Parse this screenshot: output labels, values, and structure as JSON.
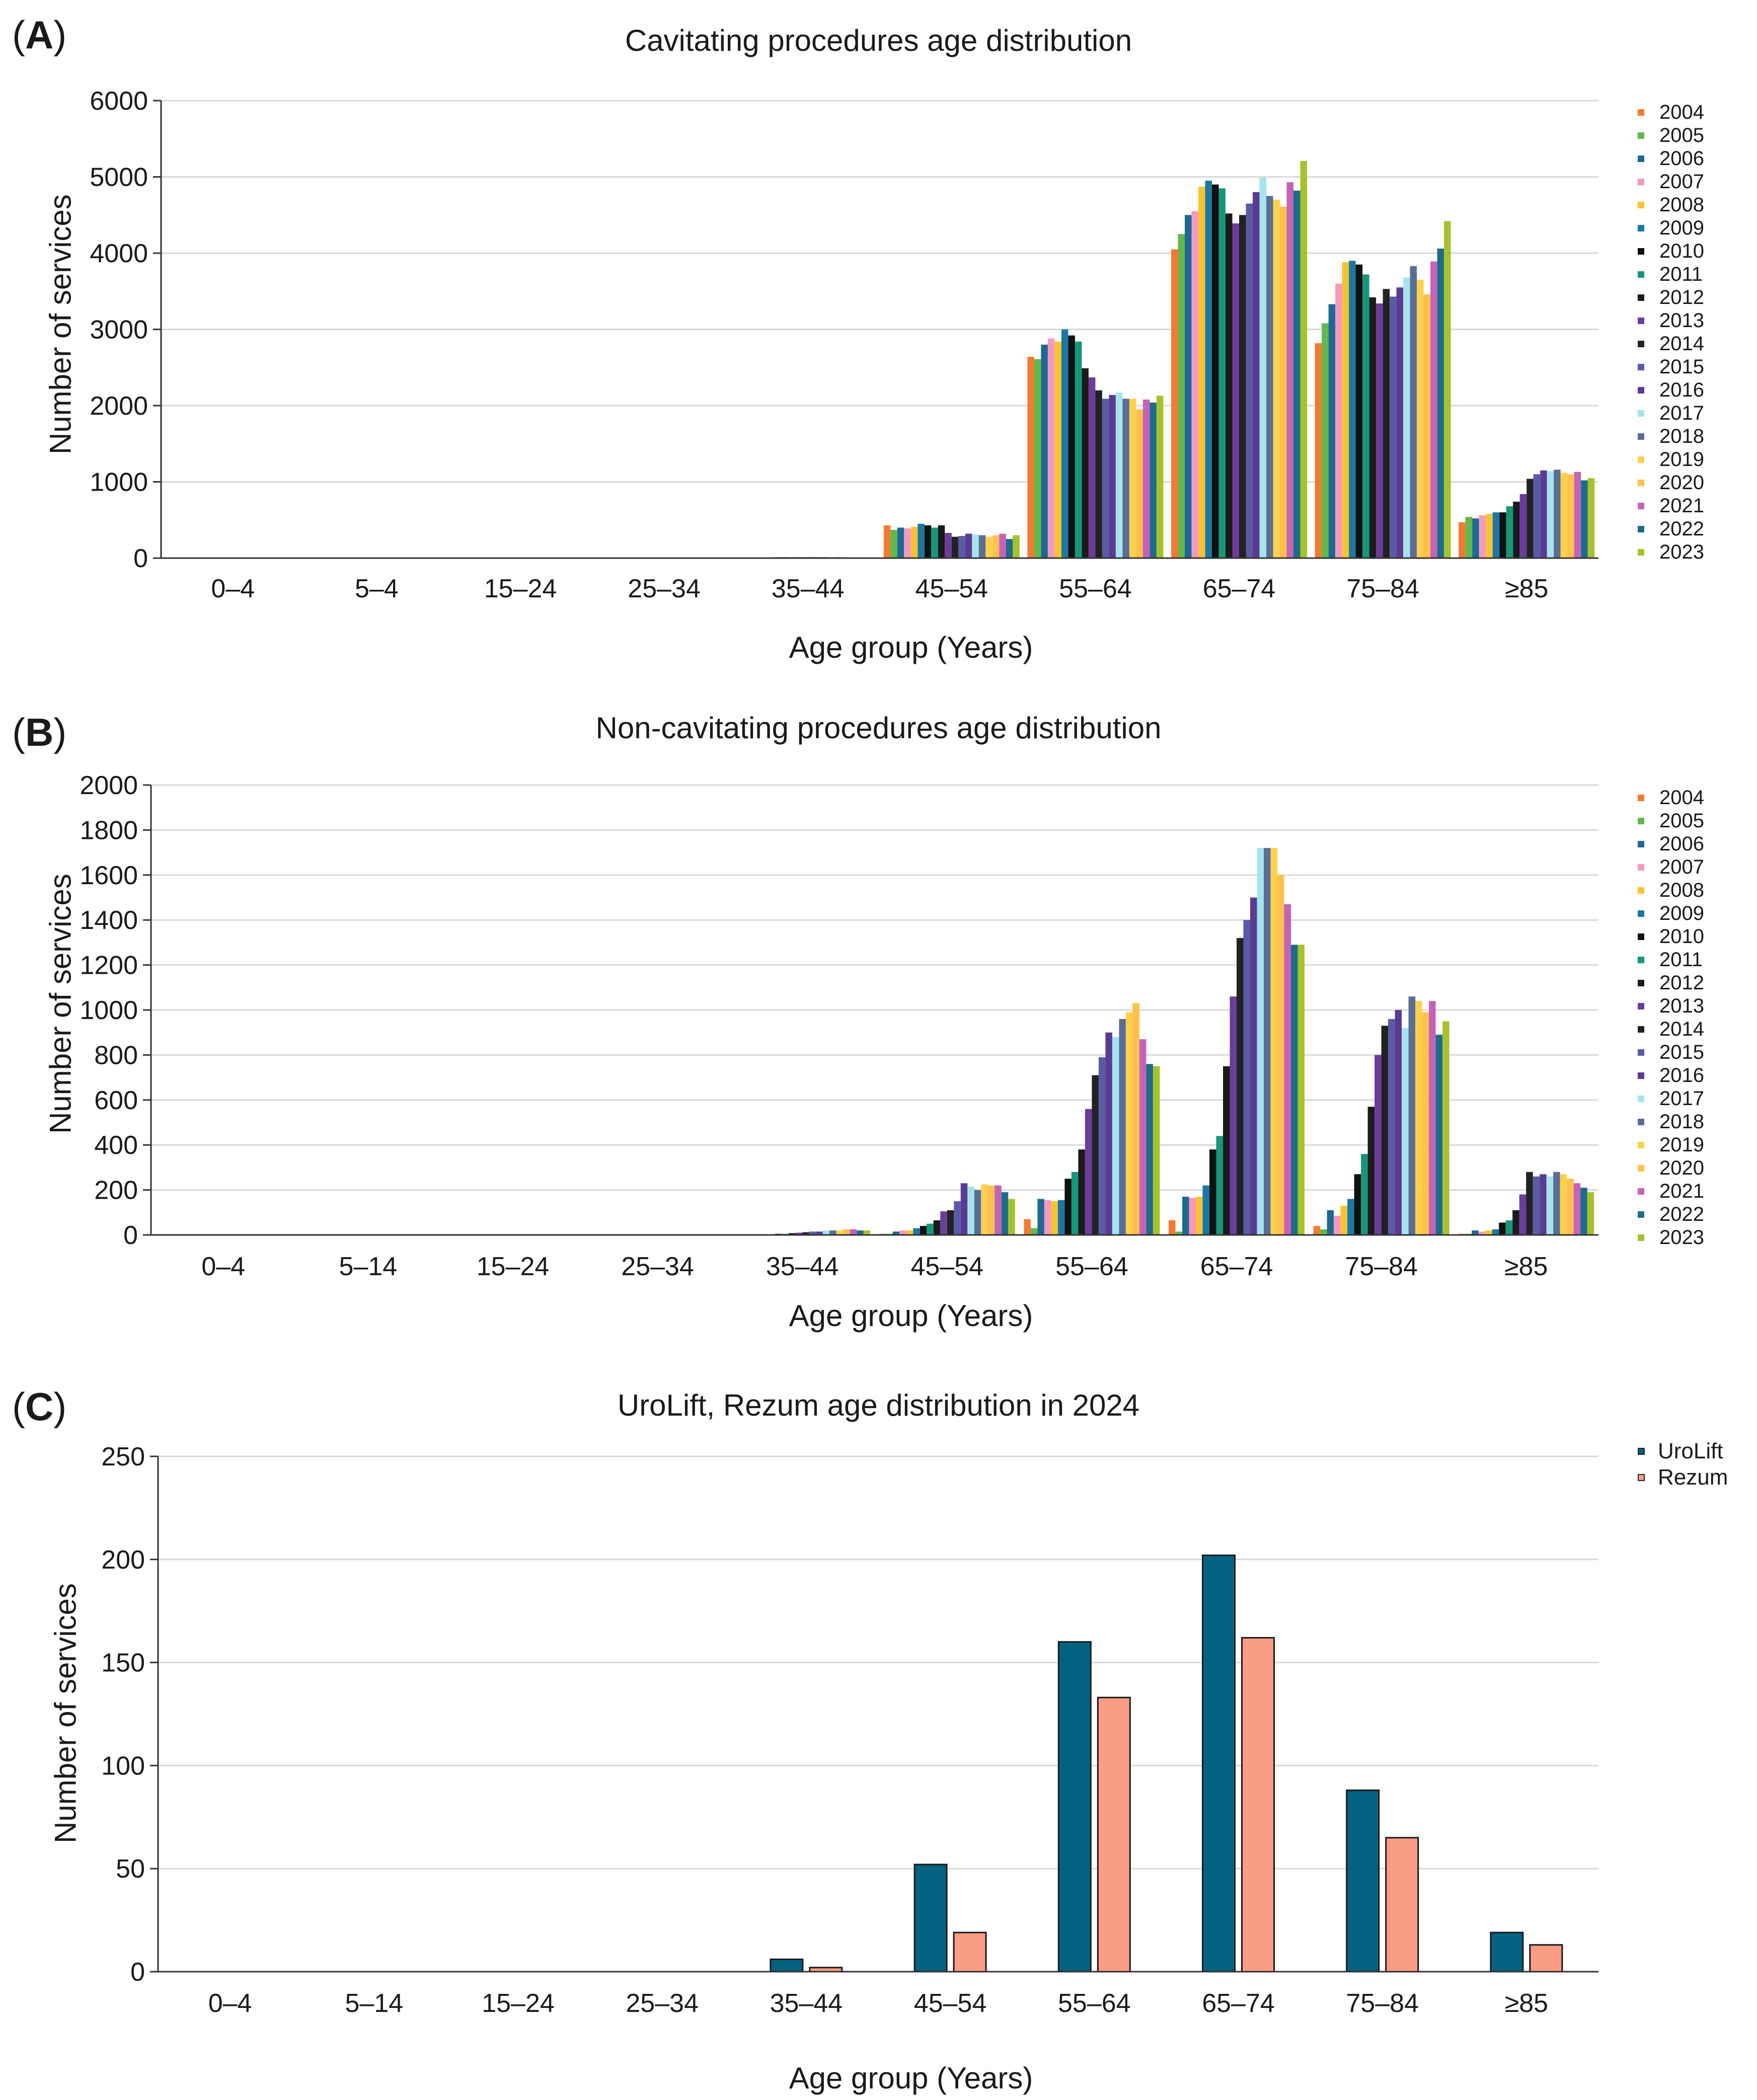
{
  "colors": {
    "years": [
      "#f37a32",
      "#62b84a",
      "#1c6a93",
      "#f49ac1",
      "#f8c332",
      "#1b78a2",
      "#111111",
      "#17977a",
      "#1a1a1a",
      "#6a3d9a",
      "#222222",
      "#5a5aa6",
      "#5b3a94",
      "#a5e4ec",
      "#5a6e96",
      "#ffd04d",
      "#fcc14e",
      "#c662b8",
      "#1c6d8a",
      "#a6c22c"
    ],
    "urolift": "#036280",
    "rezum": "#fa9d86",
    "grid": "#d9d9d9"
  },
  "chart_data": [
    {
      "id": "A",
      "panel_label": "A",
      "type": "bar",
      "title": "Cavitating procedures age distribution",
      "xlabel": "Age group (Years)",
      "ylabel": "Number of services",
      "ylim": [
        0,
        6000
      ],
      "yticks": [
        0,
        1000,
        2000,
        3000,
        4000,
        5000,
        6000
      ],
      "grid": true,
      "legend_position": "right",
      "categories": [
        "0–4",
        "5–4",
        "15–24",
        "25–34",
        "35–44",
        "45–54",
        "55–64",
        "65–74",
        "75–84",
        "≥85"
      ],
      "series": [
        {
          "name": "2004",
          "values": [
            0,
            0,
            0,
            3,
            10,
            430,
            2640,
            4050,
            2820,
            470
          ]
        },
        {
          "name": "2005",
          "values": [
            0,
            0,
            0,
            3,
            10,
            370,
            2610,
            4250,
            3080,
            540
          ]
        },
        {
          "name": "2006",
          "values": [
            0,
            0,
            0,
            3,
            10,
            400,
            2800,
            4500,
            3330,
            520
          ]
        },
        {
          "name": "2007",
          "values": [
            0,
            0,
            0,
            3,
            10,
            390,
            2880,
            4550,
            3600,
            560
          ]
        },
        {
          "name": "2008",
          "values": [
            0,
            0,
            0,
            3,
            10,
            410,
            2840,
            4870,
            3880,
            580
          ]
        },
        {
          "name": "2009",
          "values": [
            0,
            0,
            0,
            3,
            12,
            450,
            3000,
            4950,
            3900,
            600
          ]
        },
        {
          "name": "2010",
          "values": [
            0,
            0,
            0,
            3,
            12,
            430,
            2920,
            4900,
            3850,
            600
          ]
        },
        {
          "name": "2011",
          "values": [
            0,
            0,
            0,
            3,
            12,
            400,
            2840,
            4850,
            3720,
            680
          ]
        },
        {
          "name": "2012",
          "values": [
            0,
            0,
            0,
            3,
            12,
            430,
            2490,
            4520,
            3420,
            740
          ]
        },
        {
          "name": "2013",
          "values": [
            0,
            0,
            0,
            3,
            12,
            330,
            2370,
            4390,
            3340,
            840
          ]
        },
        {
          "name": "2014",
          "values": [
            0,
            0,
            0,
            3,
            12,
            280,
            2200,
            4500,
            3530,
            1040
          ]
        },
        {
          "name": "2015",
          "values": [
            0,
            0,
            0,
            3,
            12,
            290,
            2090,
            4650,
            3430,
            1100
          ]
        },
        {
          "name": "2016",
          "values": [
            0,
            0,
            0,
            3,
            12,
            320,
            2140,
            4800,
            3550,
            1150
          ]
        },
        {
          "name": "2017",
          "values": [
            0,
            0,
            0,
            3,
            12,
            310,
            2170,
            4990,
            3680,
            1140
          ]
        },
        {
          "name": "2018",
          "values": [
            0,
            0,
            0,
            3,
            12,
            300,
            2090,
            4750,
            3830,
            1160
          ]
        },
        {
          "name": "2019",
          "values": [
            0,
            0,
            0,
            3,
            12,
            280,
            2090,
            4700,
            3650,
            1120
          ]
        },
        {
          "name": "2020",
          "values": [
            0,
            0,
            0,
            3,
            10,
            300,
            1950,
            4610,
            3460,
            1100
          ]
        },
        {
          "name": "2021",
          "values": [
            0,
            0,
            0,
            3,
            10,
            320,
            2080,
            4930,
            3890,
            1130
          ]
        },
        {
          "name": "2022",
          "values": [
            0,
            0,
            0,
            3,
            10,
            250,
            2040,
            4820,
            4060,
            1020
          ]
        },
        {
          "name": "2023",
          "values": [
            0,
            0,
            0,
            3,
            10,
            300,
            2130,
            5210,
            4420,
            1050
          ]
        }
      ]
    },
    {
      "id": "B",
      "panel_label": "B",
      "type": "bar",
      "title": "Non-cavitating procedures age distribution",
      "xlabel": "Age group (Years)",
      "ylabel": "Number of services",
      "ylim": [
        0,
        2000
      ],
      "yticks": [
        0,
        200,
        400,
        600,
        800,
        1000,
        1200,
        1400,
        1600,
        1800,
        2000
      ],
      "grid": true,
      "legend_position": "right",
      "categories": [
        "0–4",
        "5–14",
        "15–24",
        "25–34",
        "35–44",
        "45–54",
        "55–64",
        "65–74",
        "75–84",
        "≥85"
      ],
      "series": [
        {
          "name": "2004",
          "values": [
            0,
            0,
            0,
            0,
            0,
            5,
            70,
            65,
            40,
            5
          ]
        },
        {
          "name": "2005",
          "values": [
            0,
            0,
            0,
            0,
            0,
            5,
            30,
            15,
            25,
            5
          ]
        },
        {
          "name": "2006",
          "values": [
            0,
            0,
            0,
            0,
            3,
            15,
            160,
            170,
            110,
            20
          ]
        },
        {
          "name": "2007",
          "values": [
            0,
            0,
            0,
            0,
            3,
            20,
            155,
            165,
            85,
            15
          ]
        },
        {
          "name": "2008",
          "values": [
            0,
            0,
            0,
            0,
            3,
            20,
            150,
            170,
            130,
            20
          ]
        },
        {
          "name": "2009",
          "values": [
            0,
            0,
            0,
            0,
            3,
            30,
            155,
            220,
            160,
            25
          ]
        },
        {
          "name": "2010",
          "values": [
            0,
            0,
            0,
            0,
            5,
            40,
            250,
            380,
            270,
            55
          ]
        },
        {
          "name": "2011",
          "values": [
            0,
            0,
            0,
            0,
            5,
            50,
            280,
            440,
            360,
            65
          ]
        },
        {
          "name": "2012",
          "values": [
            0,
            0,
            0,
            0,
            8,
            65,
            380,
            750,
            570,
            110
          ]
        },
        {
          "name": "2013",
          "values": [
            0,
            0,
            0,
            0,
            10,
            105,
            560,
            1060,
            800,
            180
          ]
        },
        {
          "name": "2014",
          "values": [
            0,
            0,
            0,
            0,
            12,
            110,
            710,
            1320,
            930,
            280
          ]
        },
        {
          "name": "2015",
          "values": [
            0,
            0,
            0,
            0,
            15,
            150,
            790,
            1400,
            960,
            260
          ]
        },
        {
          "name": "2016",
          "values": [
            0,
            0,
            0,
            0,
            15,
            230,
            900,
            1500,
            1000,
            270
          ]
        },
        {
          "name": "2017",
          "values": [
            0,
            0,
            0,
            0,
            20,
            215,
            880,
            1720,
            920,
            260
          ]
        },
        {
          "name": "2018",
          "values": [
            0,
            0,
            0,
            0,
            20,
            200,
            960,
            1720,
            1060,
            280
          ]
        },
        {
          "name": "2019",
          "values": [
            0,
            0,
            0,
            0,
            20,
            225,
            990,
            1720,
            1040,
            270
          ]
        },
        {
          "name": "2020",
          "values": [
            0,
            0,
            0,
            0,
            25,
            220,
            1030,
            1600,
            990,
            250
          ]
        },
        {
          "name": "2021",
          "values": [
            0,
            0,
            0,
            0,
            25,
            220,
            870,
            1470,
            1040,
            230
          ]
        },
        {
          "name": "2022",
          "values": [
            0,
            0,
            0,
            0,
            20,
            190,
            760,
            1290,
            890,
            210
          ]
        },
        {
          "name": "2023",
          "values": [
            0,
            0,
            0,
            0,
            20,
            160,
            750,
            1290,
            950,
            190
          ]
        }
      ]
    },
    {
      "id": "C",
      "panel_label": "C",
      "type": "bar",
      "title": "UroLift, Rezum age distribution in 2024",
      "xlabel": "Age group (Years)",
      "ylabel": "Number of services",
      "ylim": [
        0,
        250
      ],
      "yticks": [
        0,
        50,
        100,
        150,
        200,
        250
      ],
      "grid": true,
      "legend_position": "top-right",
      "categories": [
        "0–4",
        "5–14",
        "15–24",
        "25–34",
        "35–44",
        "45–54",
        "55–64",
        "65–74",
        "75–84",
        "≥85"
      ],
      "series": [
        {
          "name": "UroLift",
          "values": [
            0,
            0,
            0,
            0,
            6,
            52,
            160,
            202,
            88,
            19
          ]
        },
        {
          "name": "Rezum",
          "values": [
            0,
            0,
            0,
            0,
            2,
            19,
            133,
            162,
            65,
            13
          ]
        }
      ]
    }
  ]
}
